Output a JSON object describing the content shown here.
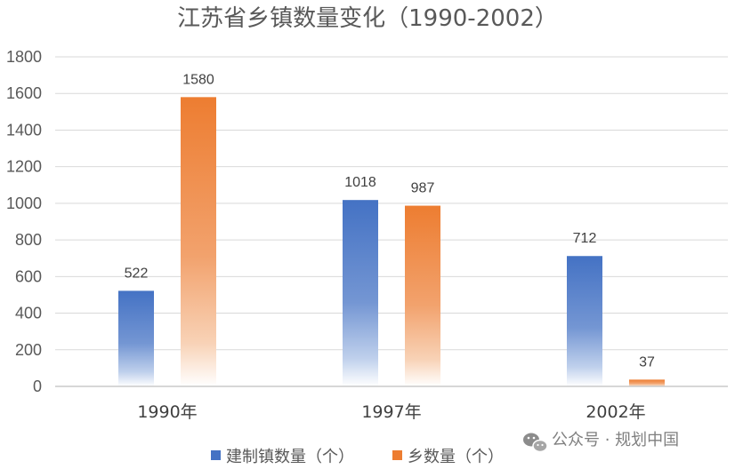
{
  "chart_data": {
    "type": "bar",
    "title": "江苏省乡镇数量变化（1990-2002）",
    "categories": [
      "1990年",
      "1997年",
      "2002年"
    ],
    "series": [
      {
        "name": "建制镇数量（个）",
        "values": [
          522,
          1018,
          712
        ],
        "color": "#4472C4"
      },
      {
        "name": "乡数量（个）",
        "values": [
          1580,
          987,
          37
        ],
        "color": "#ED7D31"
      }
    ],
    "data_labels": [
      [
        "522",
        "1580"
      ],
      [
        "1018",
        "987"
      ],
      [
        "712",
        "37"
      ]
    ],
    "ylim": [
      0,
      1800
    ],
    "yticks": [
      "0",
      "200",
      "400",
      "600",
      "800",
      "1000",
      "1200",
      "1400",
      "1600",
      "1800"
    ],
    "grid": true,
    "legend_position": "bottom"
  },
  "watermark": {
    "text": "公众号 · 规划中国",
    "icon": "wechat-icon"
  }
}
